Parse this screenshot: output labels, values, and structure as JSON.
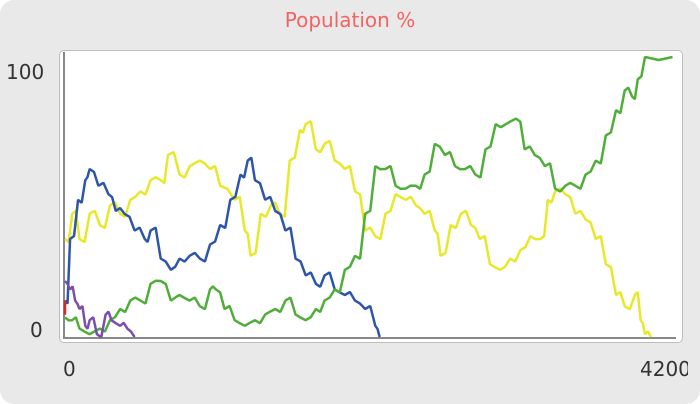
{
  "chart_data": {
    "type": "line",
    "title": "Population %",
    "xlim": [
      0,
      4200
    ],
    "ylim": [
      0,
      100
    ],
    "x_ticks": [
      "0",
      "4200"
    ],
    "y_ticks": [
      "0",
      "100"
    ],
    "grid": false,
    "series": [
      {
        "color": "#e8e82a",
        "points": [
          [
            0,
            35
          ],
          [
            50,
            44
          ],
          [
            100,
            35
          ],
          [
            170,
            44
          ],
          [
            240,
            40
          ],
          [
            310,
            47
          ],
          [
            380,
            44
          ],
          [
            450,
            49
          ],
          [
            520,
            52
          ],
          [
            590,
            56
          ],
          [
            660,
            56
          ],
          [
            710,
            65
          ],
          [
            790,
            58
          ],
          [
            860,
            61
          ],
          [
            930,
            63
          ],
          [
            1000,
            60
          ],
          [
            1070,
            54
          ],
          [
            1170,
            49
          ],
          [
            1240,
            38
          ],
          [
            1280,
            29
          ],
          [
            1350,
            44
          ],
          [
            1420,
            47
          ],
          [
            1480,
            44
          ],
          [
            1550,
            63
          ],
          [
            1620,
            74
          ],
          [
            1660,
            76
          ],
          [
            1730,
            67
          ],
          [
            1790,
            69
          ],
          [
            1860,
            63
          ],
          [
            1930,
            60
          ],
          [
            2000,
            52
          ],
          [
            2070,
            38
          ],
          [
            2140,
            36
          ],
          [
            2210,
            44
          ],
          [
            2280,
            51
          ],
          [
            2350,
            49
          ],
          [
            2420,
            47
          ],
          [
            2480,
            44
          ],
          [
            2550,
            38
          ],
          [
            2590,
            29
          ],
          [
            2660,
            40
          ],
          [
            2730,
            44
          ],
          [
            2800,
            40
          ],
          [
            2860,
            35
          ],
          [
            2930,
            26
          ],
          [
            3000,
            24
          ],
          [
            3070,
            28
          ],
          [
            3140,
            31
          ],
          [
            3210,
            36
          ],
          [
            3280,
            35
          ],
          [
            3330,
            49
          ],
          [
            3380,
            52
          ],
          [
            3450,
            51
          ],
          [
            3520,
            44
          ],
          [
            3590,
            42
          ],
          [
            3660,
            35
          ],
          [
            3730,
            26
          ],
          [
            3800,
            15
          ],
          [
            3860,
            11
          ],
          [
            3930,
            15
          ],
          [
            3970,
            6
          ],
          [
            4000,
            1
          ],
          [
            4040,
            0
          ]
        ]
      },
      {
        "color": "#2e56a8",
        "points": [
          [
            0,
            13
          ],
          [
            35,
            35
          ],
          [
            90,
            49
          ],
          [
            140,
            56
          ],
          [
            170,
            60
          ],
          [
            230,
            54
          ],
          [
            300,
            51
          ],
          [
            350,
            45
          ],
          [
            410,
            44
          ],
          [
            480,
            38
          ],
          [
            550,
            35
          ],
          [
            590,
            38
          ],
          [
            660,
            28
          ],
          [
            730,
            24
          ],
          [
            790,
            28
          ],
          [
            860,
            29
          ],
          [
            930,
            28
          ],
          [
            1000,
            33
          ],
          [
            1070,
            40
          ],
          [
            1140,
            49
          ],
          [
            1210,
            58
          ],
          [
            1260,
            63
          ],
          [
            1310,
            56
          ],
          [
            1380,
            49
          ],
          [
            1450,
            45
          ],
          [
            1520,
            38
          ],
          [
            1590,
            28
          ],
          [
            1660,
            22
          ],
          [
            1730,
            19
          ],
          [
            1790,
            22
          ],
          [
            1860,
            17
          ],
          [
            1930,
            15
          ],
          [
            2000,
            13
          ],
          [
            2070,
            10
          ],
          [
            2140,
            4
          ],
          [
            2170,
            0
          ]
        ]
      },
      {
        "color": "#4fae3a",
        "points": [
          [
            0,
            7
          ],
          [
            50,
            6
          ],
          [
            100,
            3
          ],
          [
            170,
            1
          ],
          [
            240,
            3
          ],
          [
            310,
            6
          ],
          [
            380,
            10
          ],
          [
            450,
            13
          ],
          [
            520,
            13
          ],
          [
            590,
            19
          ],
          [
            660,
            20
          ],
          [
            730,
            13
          ],
          [
            790,
            15
          ],
          [
            860,
            13
          ],
          [
            930,
            11
          ],
          [
            1000,
            17
          ],
          [
            1040,
            17
          ],
          [
            1100,
            10
          ],
          [
            1170,
            6
          ],
          [
            1240,
            4
          ],
          [
            1310,
            6
          ],
          [
            1380,
            8
          ],
          [
            1450,
            10
          ],
          [
            1520,
            13
          ],
          [
            1590,
            8
          ],
          [
            1660,
            6
          ],
          [
            1730,
            10
          ],
          [
            1790,
            13
          ],
          [
            1860,
            17
          ],
          [
            1930,
            24
          ],
          [
            2000,
            29
          ],
          [
            2070,
            44
          ],
          [
            2140,
            61
          ],
          [
            2210,
            60
          ],
          [
            2280,
            54
          ],
          [
            2350,
            53
          ],
          [
            2420,
            54
          ],
          [
            2480,
            58
          ],
          [
            2550,
            69
          ],
          [
            2620,
            65
          ],
          [
            2690,
            61
          ],
          [
            2760,
            60
          ],
          [
            2830,
            58
          ],
          [
            2900,
            67
          ],
          [
            2970,
            76
          ],
          [
            3040,
            76
          ],
          [
            3110,
            78
          ],
          [
            3170,
            67
          ],
          [
            3240,
            65
          ],
          [
            3310,
            61
          ],
          [
            3380,
            53
          ],
          [
            3450,
            54
          ],
          [
            3520,
            54
          ],
          [
            3590,
            58
          ],
          [
            3660,
            63
          ],
          [
            3730,
            72
          ],
          [
            3800,
            81
          ],
          [
            3860,
            88
          ],
          [
            3910,
            86
          ],
          [
            3950,
            92
          ],
          [
            4000,
            100
          ],
          [
            4190,
            100
          ]
        ]
      },
      {
        "color": "#7b4ea8",
        "points": [
          [
            0,
            20
          ],
          [
            35,
            17
          ],
          [
            70,
            13
          ],
          [
            100,
            10
          ],
          [
            140,
            4
          ],
          [
            170,
            6
          ],
          [
            220,
            1
          ],
          [
            280,
            8
          ],
          [
            320,
            6
          ],
          [
            380,
            4
          ],
          [
            430,
            3
          ],
          [
            480,
            0
          ]
        ]
      },
      {
        "color": "#d42a2a",
        "points": [
          [
            0,
            9
          ],
          [
            0,
            12
          ],
          [
            0,
            9
          ]
        ]
      }
    ]
  }
}
